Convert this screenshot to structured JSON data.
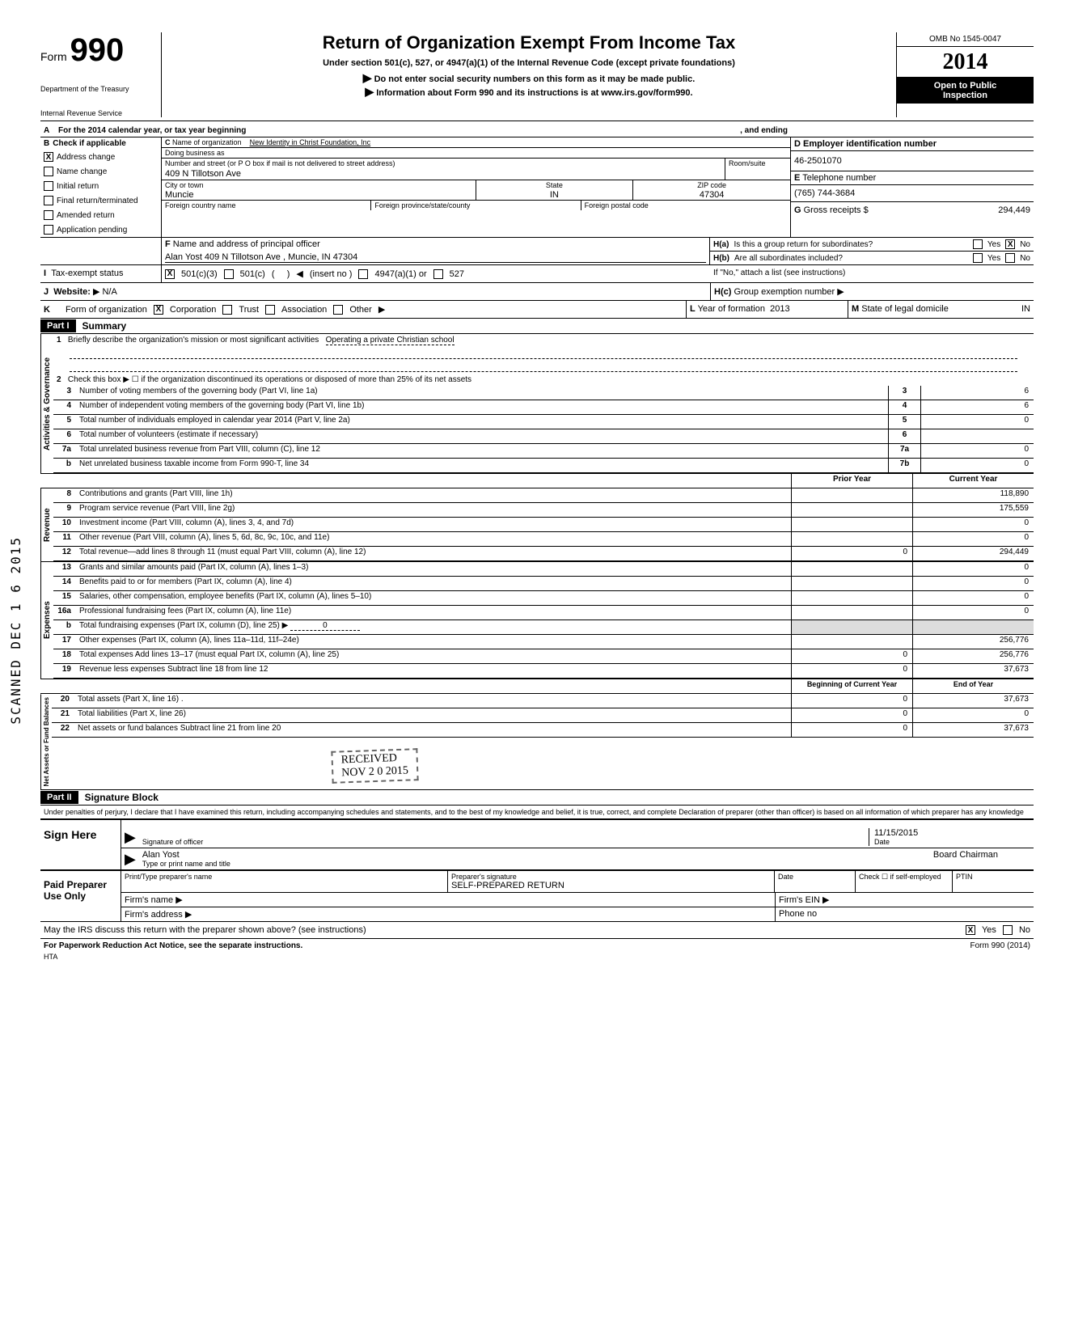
{
  "header": {
    "form_label": "Form",
    "form_number": "990",
    "dept1": "Department of the Treasury",
    "dept2": "Internal Revenue Service",
    "title": "Return of Organization Exempt From Income Tax",
    "subtitle": "Under section 501(c), 527, or 4947(a)(1) of the Internal Revenue Code (except private foundations)",
    "instruct1": "Do not enter social security numbers on this form as it may be made public.",
    "instruct2": "Information about Form 990 and its instructions is at www.irs.gov/form990.",
    "omb": "OMB No 1545-0047",
    "year": "2014",
    "open1": "Open to Public",
    "open2": "Inspection"
  },
  "rowA": {
    "text1": "For the 2014 calendar year, or tax year beginning",
    "text2": ", and ending"
  },
  "checkB": {
    "header": "Check if applicable",
    "items": [
      {
        "label": "Address change",
        "checked": "X"
      },
      {
        "label": "Name change",
        "checked": ""
      },
      {
        "label": "Initial return",
        "checked": ""
      },
      {
        "label": "Final return/terminated",
        "checked": ""
      },
      {
        "label": "Amended return",
        "checked": ""
      },
      {
        "label": "Application pending",
        "checked": ""
      }
    ]
  },
  "org": {
    "name_label": "Name of organization",
    "name": "New Identity in Christ Foundation, Inc",
    "dba_label": "Doing business as",
    "dba": "",
    "street_label": "Number and street (or P O box if mail is not delivered to street address)",
    "room_label": "Room/suite",
    "street": "409 N  Tillotson Ave",
    "city_label": "City or town",
    "state_label": "State",
    "zip_label": "ZIP code",
    "city": "Muncie",
    "state": "IN",
    "zip": "47304",
    "foreign_country_label": "Foreign country name",
    "foreign_prov_label": "Foreign province/state/county",
    "foreign_postal_label": "Foreign postal code"
  },
  "colD": {
    "ein_label": "Employer identification number",
    "ein": "46-2501070",
    "phone_label": "Telephone number",
    "phone": "(765) 744-3684",
    "gross_label": "Gross receipts $",
    "gross": "294,449"
  },
  "sectionF": {
    "label": "Name and address of principal officer",
    "value": "Alan Yost 409 N  Tillotson Ave , Muncie, IN  47304"
  },
  "sectionH": {
    "ha": "Is this a group return for subordinates?",
    "hb": "Are all subordinates included?",
    "hb_note": "If \"No,\" attach a list  (see instructions)",
    "hc": "Group exemption number",
    "ha_yes": "",
    "ha_no": "X",
    "hb_yes": "",
    "hb_no": ""
  },
  "sectionI": {
    "label": "Tax-exempt status",
    "c501c3": "X",
    "opts": [
      "501(c)(3)",
      "501(c)",
      "(insert no )",
      "4947(a)(1) or",
      "527"
    ]
  },
  "sectionJ": {
    "label": "Website:",
    "value": "N/A"
  },
  "sectionK": {
    "label": "Form of organization",
    "corp": "X",
    "opts": [
      "Corporation",
      "Trust",
      "Association",
      "Other"
    ]
  },
  "sectionL": {
    "label": "Year of formation",
    "value": "2013"
  },
  "sectionM": {
    "label": "State of legal domicile",
    "value": "IN"
  },
  "part1": {
    "header": "Part I",
    "title": "Summary",
    "line1_label": "Briefly describe the organization's mission or most significant activities",
    "line1_value": "Operating a private Christian school",
    "line2": "Check this box ▶ ☐ if the organization discontinued its operations or disposed of more than 25% of its net assets",
    "gov_lines": [
      {
        "n": "3",
        "text": "Number of voting members of the governing body (Part VI, line 1a)",
        "box": "3",
        "val": "6"
      },
      {
        "n": "4",
        "text": "Number of independent voting members of the governing body (Part VI, line 1b)",
        "box": "4",
        "val": "6"
      },
      {
        "n": "5",
        "text": "Total number of individuals employed in calendar year 2014 (Part V, line 2a)",
        "box": "5",
        "val": "0"
      },
      {
        "n": "6",
        "text": "Total number of volunteers (estimate if necessary)",
        "box": "6",
        "val": ""
      },
      {
        "n": "7a",
        "text": "Total unrelated business revenue from Part VIII, column (C), line 12",
        "box": "7a",
        "val": "0"
      },
      {
        "n": "b",
        "text": "Net unrelated business taxable income from Form 990-T, line 34",
        "box": "7b",
        "val": "0"
      }
    ],
    "col_headers": {
      "prior": "Prior Year",
      "current": "Current Year"
    },
    "revenue_lines": [
      {
        "n": "8",
        "text": "Contributions and grants (Part VIII, line 1h)",
        "prior": "",
        "curr": "118,890"
      },
      {
        "n": "9",
        "text": "Program service revenue (Part VIII, line 2g)",
        "prior": "",
        "curr": "175,559"
      },
      {
        "n": "10",
        "text": "Investment income (Part VIII, column (A), lines 3, 4, and 7d)",
        "prior": "",
        "curr": "0"
      },
      {
        "n": "11",
        "text": "Other revenue (Part VIII, column (A), lines 5, 6d, 8c, 9c, 10c, and 11e)",
        "prior": "",
        "curr": "0"
      },
      {
        "n": "12",
        "text": "Total revenue—add lines 8 through 11 (must equal Part VIII, column (A), line 12)",
        "prior": "0",
        "curr": "294,449"
      }
    ],
    "expense_lines": [
      {
        "n": "13",
        "text": "Grants and similar amounts paid (Part IX, column (A), lines 1–3)",
        "prior": "",
        "curr": "0"
      },
      {
        "n": "14",
        "text": "Benefits paid to or for members (Part IX, column (A), line 4)",
        "prior": "",
        "curr": "0"
      },
      {
        "n": "15",
        "text": "Salaries, other compensation, employee benefits (Part IX, column (A), lines 5–10)",
        "prior": "",
        "curr": "0"
      },
      {
        "n": "16a",
        "text": "Professional fundraising fees (Part IX, column (A), line 11e)",
        "prior": "",
        "curr": "0"
      },
      {
        "n": "b",
        "text": "Total fundraising expenses (Part IX, column (D), line 25) ▶",
        "inline_val": "0"
      },
      {
        "n": "17",
        "text": "Other expenses (Part IX, column (A), lines 11a–11d, 11f–24e)",
        "prior": "",
        "curr": "256,776"
      },
      {
        "n": "18",
        "text": "Total expenses  Add lines 13–17 (must equal Part IX, column (A), line 25)",
        "prior": "0",
        "curr": "256,776"
      },
      {
        "n": "19",
        "text": "Revenue less expenses  Subtract line 18 from line 12",
        "prior": "0",
        "curr": "37,673"
      }
    ],
    "net_headers": {
      "begin": "Beginning of Current Year",
      "end": "End of Year"
    },
    "net_lines": [
      {
        "n": "20",
        "text": "Total assets (Part X, line 16) .",
        "begin": "0",
        "end": "37,673"
      },
      {
        "n": "21",
        "text": "Total liabilities (Part X, line 26)",
        "begin": "0",
        "end": "0"
      },
      {
        "n": "22",
        "text": "Net assets or fund balances  Subtract line 21 from line 20",
        "begin": "0",
        "end": "37,673"
      }
    ],
    "side_labels": {
      "gov": "Activities & Governance",
      "rev": "Revenue",
      "exp": "Expenses",
      "net": "Net Assets or Fund Balances"
    },
    "stamp_received": "RECEIVED",
    "stamp_date": "NOV 2 0 2015",
    "stamp_scanned": "SCANNED DEC 1 6 2015"
  },
  "part2": {
    "header": "Part II",
    "title": "Signature Block",
    "perjury": "Under penalties of perjury, I declare that I have examined this return, including accompanying schedules and statements, and to the best of my knowledge and belief, it is true, correct, and complete  Declaration of preparer (other than officer) is based on all information of which preparer has any knowledge",
    "sign_here": "Sign Here",
    "sig_officer_label": "Signature of officer",
    "date_label": "Date",
    "date_value": "11/15/2015",
    "officer_name": "Alan Yost",
    "officer_title": "Board Chairman",
    "type_print_label": "Type or print name and title",
    "paid": "Paid Preparer Use Only",
    "prep_name_label": "Print/Type preparer's name",
    "prep_sig_label": "Preparer's signature",
    "prep_sig_value": "SELF-PREPARED RETURN",
    "check_self": "Check ☐ if self-employed",
    "ptin": "PTIN",
    "firm_name": "Firm's name",
    "firm_ein": "Firm's EIN",
    "firm_addr": "Firm's address",
    "phone": "Phone no",
    "discuss": "May the IRS discuss this return with the preparer shown above? (see instructions)",
    "discuss_yes": "X",
    "paperwork": "For Paperwork Reduction Act Notice, see the separate instructions.",
    "hta": "HTA",
    "form_foot": "Form 990 (2014)"
  },
  "letters": {
    "A": "A",
    "B": "B",
    "C": "C",
    "D": "D",
    "E": "E",
    "F": "F",
    "G": "G",
    "H": "H",
    "I": "I",
    "J": "J",
    "K": "K",
    "L": "L",
    "M": "M"
  }
}
